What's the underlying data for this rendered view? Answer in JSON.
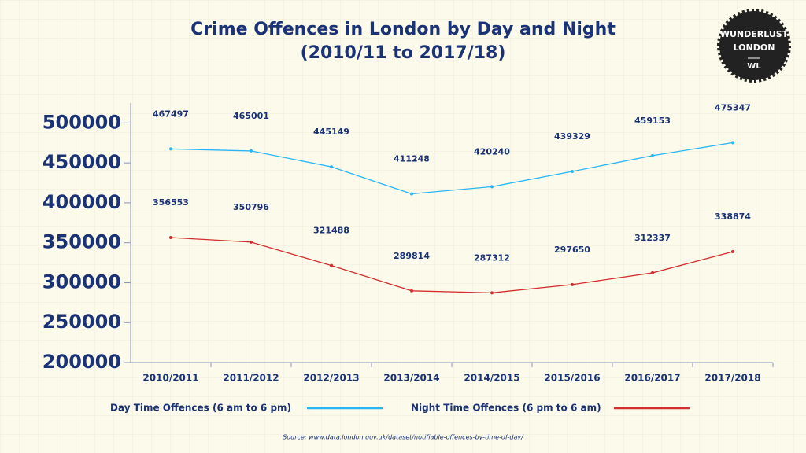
{
  "chart_data": {
    "type": "line",
    "title": "Crime Offences in London by Day and Night",
    "subtitle": "(2010/11 to 2017/18)",
    "categories": [
      "2010/2011",
      "2011/2012",
      "2012/2013",
      "2013/2014",
      "2014/2015",
      "2015/2016",
      "2016/2017",
      "2017/2018"
    ],
    "series": [
      {
        "name": "Day Time Offences (6 am to 6 pm)",
        "color": "#29b6f6",
        "values": [
          467497,
          465001,
          445149,
          411248,
          420240,
          439329,
          459153,
          475347
        ]
      },
      {
        "name": "Night Time Offences (6 pm to 6 am)",
        "color": "#d32f2f",
        "values": [
          356553,
          350796,
          321488,
          289814,
          287312,
          297650,
          312337,
          338874
        ]
      }
    ],
    "ylim": [
      200000,
      525000
    ],
    "yticks": [
      200000,
      250000,
      300000,
      350000,
      400000,
      450000,
      500000
    ],
    "source": "Source: www.data.london.gov.uk/dataset/notifiable-offences-by-time-of-day/"
  },
  "badge": {
    "lines": [
      "WUNDERLUST",
      "LONDON",
      "WL"
    ]
  }
}
